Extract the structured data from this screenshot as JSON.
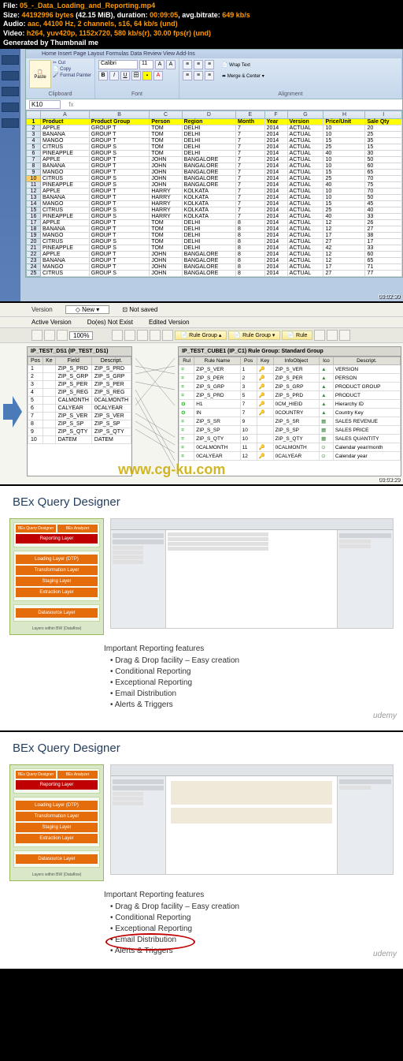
{
  "meta": {
    "file_label": "File:",
    "file": "05_-_Data_Loading_and_Reporting.mp4",
    "size_label": "Size:",
    "size_bytes": "44192996 bytes",
    "size_mib": "(42.15 MiB)",
    "duration_label": "duration:",
    "duration": "00:09:05",
    "avgbr_label": "avg.bitrate:",
    "avgbr": "649 kb/s",
    "audio_label": "Audio:",
    "audio": "aac, 44100 Hz, 2 channels, s16, 64 kb/s (und)",
    "video_label": "Video:",
    "video": "h264, yuv420p, 1152x720, 580 kb/s(r), 30.00 fps(r) (und)",
    "gen_label": "Generated by Thumbnail me"
  },
  "excel": {
    "tabs": "Home     Insert     Page Layout     Formulas     Data     Review     View     Add-Ins",
    "clipboard": {
      "paste": "Paste",
      "cut": "Cut",
      "copy": "Copy",
      "painter": "Format Painter",
      "label": "Clipboard"
    },
    "font": {
      "name": "Calibri",
      "size": "11",
      "label": "Font"
    },
    "align": {
      "wrap": "Wrap Text",
      "merge": "Merge & Center",
      "label": "Alignment"
    },
    "cellref": "K10",
    "cols": [
      "",
      "A",
      "B",
      "C",
      "D",
      "E",
      "F",
      "G",
      "H",
      "I"
    ],
    "headers": [
      "Product",
      "Product Group",
      "Person",
      "Region",
      "Month",
      "Year",
      "Version",
      "Price/Unit",
      "Sale Qty"
    ],
    "rows": [
      [
        "APPLE",
        "GROUP T",
        "TOM",
        "DELHI",
        "7",
        "2014",
        "ACTUAL",
        "10",
        "20"
      ],
      [
        "BANANA",
        "GROUP T",
        "TOM",
        "DELHI",
        "7",
        "2014",
        "ACTUAL",
        "10",
        "25"
      ],
      [
        "MANGO",
        "GROUP T",
        "TOM",
        "DELHI",
        "7",
        "2014",
        "ACTUAL",
        "15",
        "35"
      ],
      [
        "CITRUS",
        "GROUP S",
        "TOM",
        "DELHI",
        "7",
        "2014",
        "ACTUAL",
        "25",
        "15"
      ],
      [
        "PINEAPPLE",
        "GROUP S",
        "TOM",
        "DELHI",
        "7",
        "2014",
        "ACTUAL",
        "40",
        "30"
      ],
      [
        "APPLE",
        "GROUP T",
        "JOHN",
        "BANGALORE",
        "7",
        "2014",
        "ACTUAL",
        "10",
        "50"
      ],
      [
        "BANANA",
        "GROUP T",
        "JOHN",
        "BANGALORE",
        "7",
        "2014",
        "ACTUAL",
        "10",
        "60"
      ],
      [
        "MANGO",
        "GROUP T",
        "JOHN",
        "BANGALORE",
        "7",
        "2014",
        "ACTUAL",
        "15",
        "65"
      ],
      [
        "CITRUS",
        "GROUP S",
        "JOHN",
        "BANGALORE",
        "7",
        "2014",
        "ACTUAL",
        "25",
        "70"
      ],
      [
        "PINEAPPLE",
        "GROUP S",
        "JOHN",
        "BANGALORE",
        "7",
        "2014",
        "ACTUAL",
        "40",
        "75"
      ],
      [
        "APPLE",
        "GROUP T",
        "HARRY",
        "KOLKATA",
        "7",
        "2014",
        "ACTUAL",
        "10",
        "70"
      ],
      [
        "BANANA",
        "GROUP T",
        "HARRY",
        "KOLKATA",
        "7",
        "2014",
        "ACTUAL",
        "10",
        "50"
      ],
      [
        "MANGO",
        "GROUP T",
        "HARRY",
        "KOLKATA",
        "7",
        "2014",
        "ACTUAL",
        "15",
        "45"
      ],
      [
        "CITRUS",
        "GROUP S",
        "HARRY",
        "KOLKATA",
        "7",
        "2014",
        "ACTUAL",
        "25",
        "40"
      ],
      [
        "PINEAPPLE",
        "GROUP S",
        "HARRY",
        "KOLKATA",
        "7",
        "2014",
        "ACTUAL",
        "40",
        "33"
      ],
      [
        "APPLE",
        "GROUP T",
        "TOM",
        "DELHI",
        "8",
        "2014",
        "ACTUAL",
        "12",
        "26"
      ],
      [
        "BANANA",
        "GROUP T",
        "TOM",
        "DELHI",
        "8",
        "2014",
        "ACTUAL",
        "12",
        "27"
      ],
      [
        "MANGO",
        "GROUP T",
        "TOM",
        "DELHI",
        "8",
        "2014",
        "ACTUAL",
        "17",
        "38"
      ],
      [
        "CITRUS",
        "GROUP S",
        "TOM",
        "DELHI",
        "8",
        "2014",
        "ACTUAL",
        "27",
        "17"
      ],
      [
        "PINEAPPLE",
        "GROUP S",
        "TOM",
        "DELHI",
        "8",
        "2014",
        "ACTUAL",
        "42",
        "33"
      ],
      [
        "APPLE",
        "GROUP T",
        "JOHN",
        "BANGALORE",
        "8",
        "2014",
        "ACTUAL",
        "12",
        "60"
      ],
      [
        "BANANA",
        "GROUP T",
        "JOHN",
        "BANGALORE",
        "8",
        "2014",
        "ACTUAL",
        "12",
        "65"
      ],
      [
        "MANGO",
        "GROUP T",
        "JOHN",
        "BANGALORE",
        "8",
        "2014",
        "ACTUAL",
        "17",
        "71"
      ],
      [
        "CITRUS",
        "GROUP S",
        "JOHN",
        "BANGALORE",
        "8",
        "2014",
        "ACTUAL",
        "27",
        "77"
      ]
    ],
    "timestamp": "00:02:30",
    "selected_row": 10
  },
  "sap": {
    "version_label": "Version",
    "version": "New",
    "saved": "Not saved",
    "active": "Active Version",
    "notexist": "Do(es) Not Exist",
    "edited": "Edited Version",
    "zoom": "100%",
    "rulegroup_btn": "Rule Group",
    "rule_btn": "Rule",
    "ds_title": "IP_TEST_DS1 (IP_TEST_DS1)",
    "ds_cols": [
      "Pos",
      "Ke",
      "Field",
      "Descript."
    ],
    "ds_rows": [
      [
        "1",
        "",
        "ZIP_S_PRD",
        "ZIP_S_PRD"
      ],
      [
        "2",
        "",
        "ZIP_S_GRP",
        "ZIP_S_GRP"
      ],
      [
        "3",
        "",
        "ZIP_S_PER",
        "ZIP_S_PER"
      ],
      [
        "4",
        "",
        "ZIP_S_REG",
        "ZIP_S_REG"
      ],
      [
        "5",
        "",
        "CALMONTH",
        "0CALMONTH"
      ],
      [
        "6",
        "",
        "CALYEAR",
        "0CALYEAR"
      ],
      [
        "7",
        "",
        "ZIP_S_VER",
        "ZIP_S_VER"
      ],
      [
        "8",
        "",
        "ZIP_S_SP",
        "ZIP_S_SP"
      ],
      [
        "9",
        "",
        "ZIP_S_QTY",
        "ZIP_S_QTY"
      ],
      [
        "10",
        "",
        "DATEM",
        "DATEM"
      ]
    ],
    "cube_title": "IP_TEST_CUBE1 (IP_C1) Rule Group: Standard Group",
    "cube_cols": [
      "Rul",
      "Rule Name",
      "Pos",
      "Key",
      "InfoObject",
      "Ico",
      "Descript."
    ],
    "cube_rows": [
      [
        "=",
        "ZIP_S_VER",
        "1",
        "🔑",
        "ZIP_S_VER",
        "▲",
        "VERSION"
      ],
      [
        "=",
        "ZIP_S_PER",
        "2",
        "🔑",
        "ZIP_S_PER",
        "▲",
        "PERSON"
      ],
      [
        "=",
        "ZIP_S_GRP",
        "3",
        "🔑",
        "ZIP_S_GRP",
        "▲",
        "PRODUCT GROUP"
      ],
      [
        "=",
        "ZIP_S_PRD",
        "5",
        "🔑",
        "ZIP_S_PRD",
        "▲",
        "PRODUCT"
      ],
      [
        "⊙",
        "H1",
        "7",
        "🔑",
        "0CM_HIEID",
        "▲",
        "Hierarchy ID"
      ],
      [
        "⊙",
        "IN",
        "7",
        "🔑",
        "0COUNTRY",
        "▲",
        "Country Key"
      ],
      [
        "=",
        "ZIP_S_SR",
        "9",
        "",
        "ZIP_S_SR",
        "▦",
        "SALES REVENUE"
      ],
      [
        "=",
        "ZIP_S_SP",
        "10",
        "",
        "ZIP_S_SP",
        "▦",
        "SALES PRICE"
      ],
      [
        "=",
        "ZIP_S_QTY",
        "10",
        "",
        "ZIP_S_QTY",
        "▦",
        "SALES QUANTITY"
      ],
      [
        "=",
        "0CALMONTH",
        "11",
        "🔑",
        "0CALMONTH",
        "⊙",
        "Calendar year/month"
      ],
      [
        "=",
        "0CALYEAR",
        "12",
        "🔑",
        "0CALYEAR",
        "⊙",
        "Calendar year"
      ]
    ],
    "watermark": "www.cg-ku.com",
    "timestamp": "00:03:29"
  },
  "bex": {
    "title": "BEx Query Designer",
    "stack": {
      "top1": "BEx Query Designer",
      "top2": "BEx Analyzer",
      "layers": [
        "Reporting Layer",
        "Loading Layer (DTP)",
        "Transformation Layer",
        "Staging Layer",
        "Extraction Layer",
        "Datasource Layer"
      ],
      "foot": "Layers within BW (Dataflow)"
    },
    "features_title": "Important Reporting features",
    "features": [
      "Drag & Drop facility – Easy creation",
      "Conditional Reporting",
      "Exceptional Reporting",
      "Email Distribution",
      "Alerts & Triggers"
    ],
    "udemy": "udemy",
    "ts3": "00:05:27",
    "ts4": "00:07:17"
  },
  "colors": {
    "excel_header_bg": "#ffff00",
    "ribbon_bg": "#c5d7ec",
    "sap_bg": "#f5f5f0",
    "orange_layer": "#e46c0a",
    "green_border": "#9bbb59",
    "red_circle": "#c00000",
    "meta_orange": "#ff9900"
  }
}
